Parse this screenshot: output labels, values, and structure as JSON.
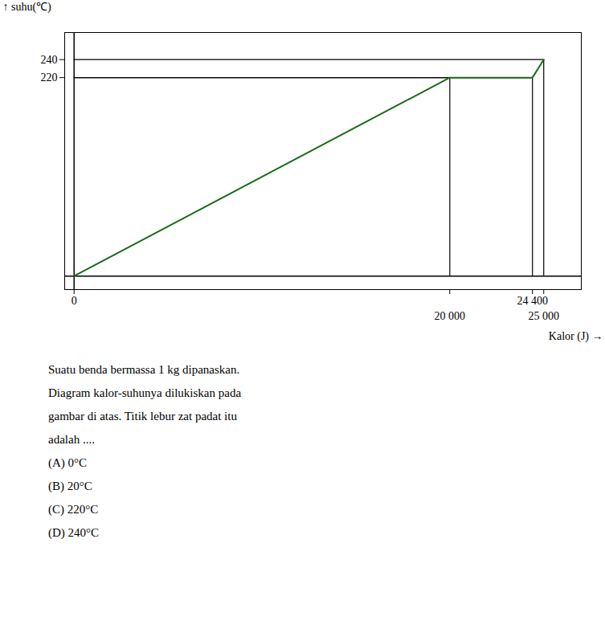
{
  "chart_data": {
    "type": "line",
    "x": [
      0,
      20000,
      24400,
      25000
    ],
    "values": [
      0,
      220,
      220,
      240
    ],
    "color": "#1a6b1a",
    "xlabel": "Kalor (J)",
    "ylabel": "suhu(℃)",
    "xlim": [
      -500,
      27000
    ],
    "ylim": [
      -15,
      270
    ],
    "xticks": [
      0,
      {
        "value": 20000,
        "label": "20 000"
      },
      {
        "value": 24400,
        "label": "24 400"
      },
      {
        "value": 25000,
        "label": "25 000"
      }
    ],
    "yticks": [
      220,
      240
    ],
    "annotations": [
      "Suatu benda bermassa 1 kg dipanaskan.",
      "Diagram kalor-suhunya dilukiskan pada",
      "gambar di atas. Titik lebur zat padat itu",
      "adalah ....",
      "(A)  0°C",
      "(B)  20°C",
      "(C)  220°C",
      "(D)  240°C"
    ]
  }
}
